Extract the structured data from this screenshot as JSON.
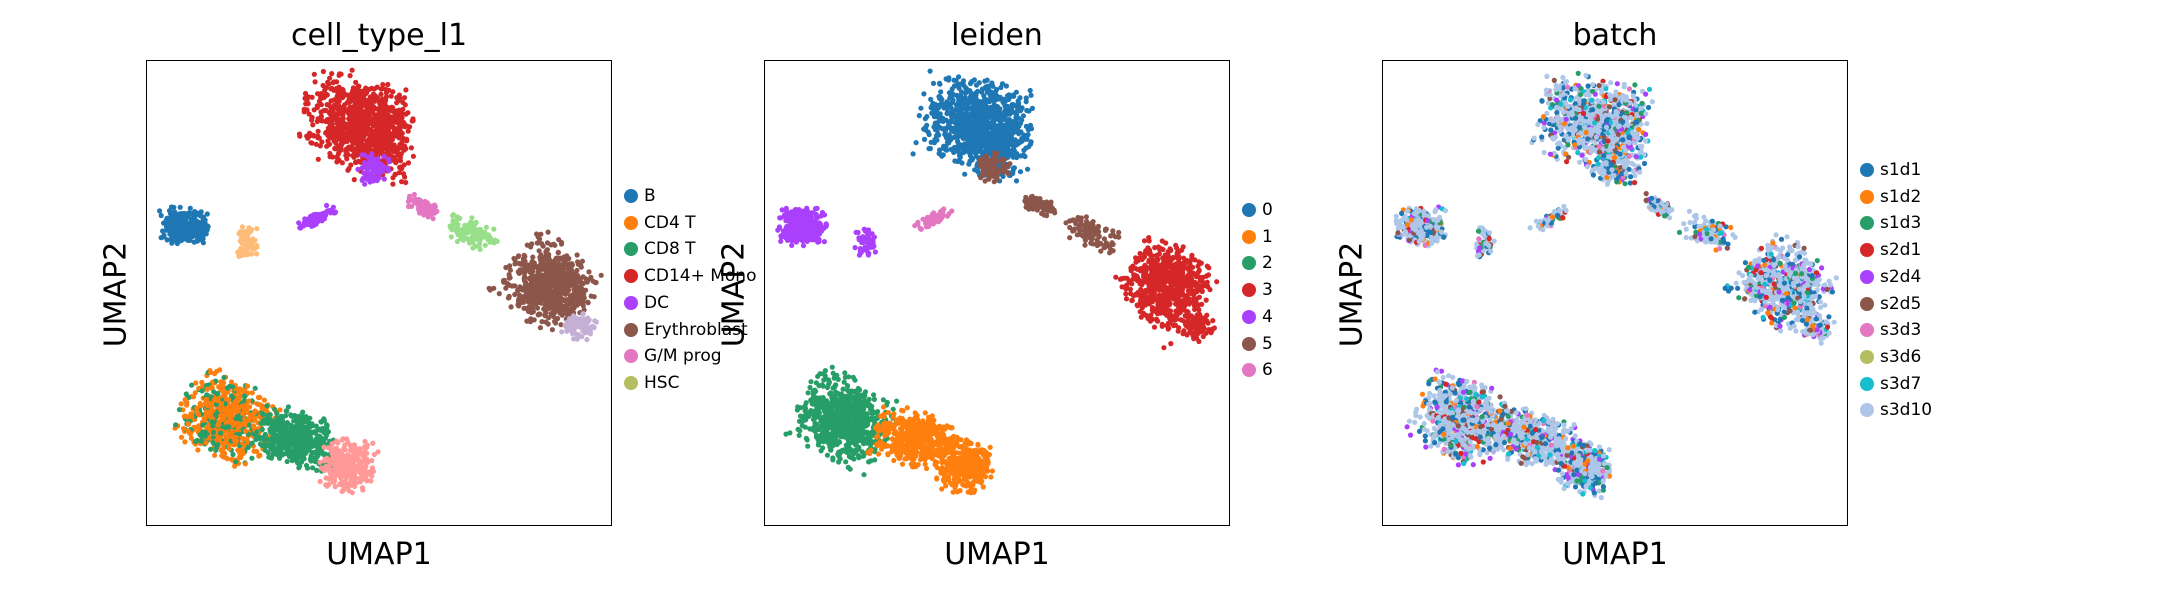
{
  "chart_data": [
    {
      "type": "scatter",
      "title": "cell_type_l1",
      "xlabel": "UMAP1",
      "ylabel": "UMAP2",
      "grid": false,
      "legend_position": "right",
      "series": [
        {
          "name": "B",
          "color": "#1f77b4"
        },
        {
          "name": "CD4 T",
          "color": "#ff7f0e"
        },
        {
          "name": "CD8 T",
          "color": "#279e68"
        },
        {
          "name": "CD14+ Mono",
          "color": "#d62728"
        },
        {
          "name": "DC",
          "color": "#aa40fc"
        },
        {
          "name": "Erythroblast",
          "color": "#8c564b"
        },
        {
          "name": "G/M prog",
          "color": "#e377c2"
        },
        {
          "name": "HSC",
          "color": "#b5bd61"
        }
      ],
      "extra_colors": {
        "ILC/MK": "#98df8a",
        "late Ery": "#c5b0d5",
        "Plasma": "#ff9896",
        "Plasma2": "#ffbb78"
      }
    },
    {
      "type": "scatter",
      "title": "leiden",
      "xlabel": "UMAP1",
      "ylabel": "UMAP2",
      "grid": false,
      "legend_position": "right",
      "series": [
        {
          "name": "0",
          "color": "#1f77b4"
        },
        {
          "name": "1",
          "color": "#ff7f0e"
        },
        {
          "name": "2",
          "color": "#279e68"
        },
        {
          "name": "3",
          "color": "#d62728"
        },
        {
          "name": "4",
          "color": "#aa40fc"
        },
        {
          "name": "5",
          "color": "#8c564b"
        },
        {
          "name": "6",
          "color": "#e377c2"
        }
      ]
    },
    {
      "type": "scatter",
      "title": "batch",
      "xlabel": "UMAP1",
      "ylabel": "UMAP2",
      "grid": false,
      "legend_position": "right",
      "series": [
        {
          "name": "s1d1",
          "color": "#1f77b4"
        },
        {
          "name": "s1d2",
          "color": "#ff7f0e"
        },
        {
          "name": "s1d3",
          "color": "#279e68"
        },
        {
          "name": "s2d1",
          "color": "#d62728"
        },
        {
          "name": "s2d4",
          "color": "#aa40fc"
        },
        {
          "name": "s2d5",
          "color": "#8c564b"
        },
        {
          "name": "s3d3",
          "color": "#e377c2"
        },
        {
          "name": "s3d6",
          "color": "#b5bd61"
        },
        {
          "name": "s3d7",
          "color": "#17becf"
        },
        {
          "name": "s3d10",
          "color": "#aec7e8"
        }
      ]
    }
  ]
}
